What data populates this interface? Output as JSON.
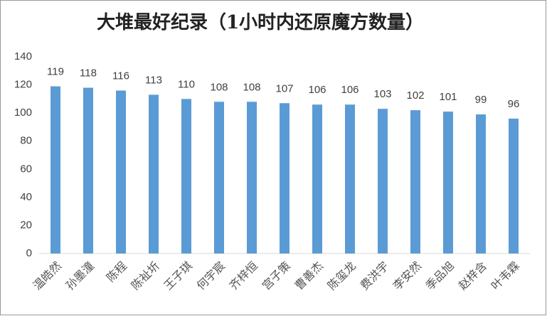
{
  "chart_data": {
    "type": "bar",
    "title": "大堆最好纪录（1小时内还原魔方数量）",
    "categories": [
      "温皓然",
      "孙墨潼",
      "陈程",
      "陈祉圻",
      "王子琪",
      "何宇宸",
      "齐梓恒",
      "宫子策",
      "曹善杰",
      "陈玺龙",
      "费洪宇",
      "李安然",
      "季品旭",
      "赵梓含",
      "叶韦霖"
    ],
    "values": [
      119,
      118,
      116,
      113,
      110,
      108,
      108,
      107,
      106,
      106,
      103,
      102,
      101,
      99,
      96
    ],
    "color": "#5b9bd5",
    "ylim": [
      0,
      140
    ],
    "yticks": [
      0,
      20,
      40,
      60,
      80,
      100,
      120,
      140
    ],
    "grid": false,
    "data_labels": true
  }
}
